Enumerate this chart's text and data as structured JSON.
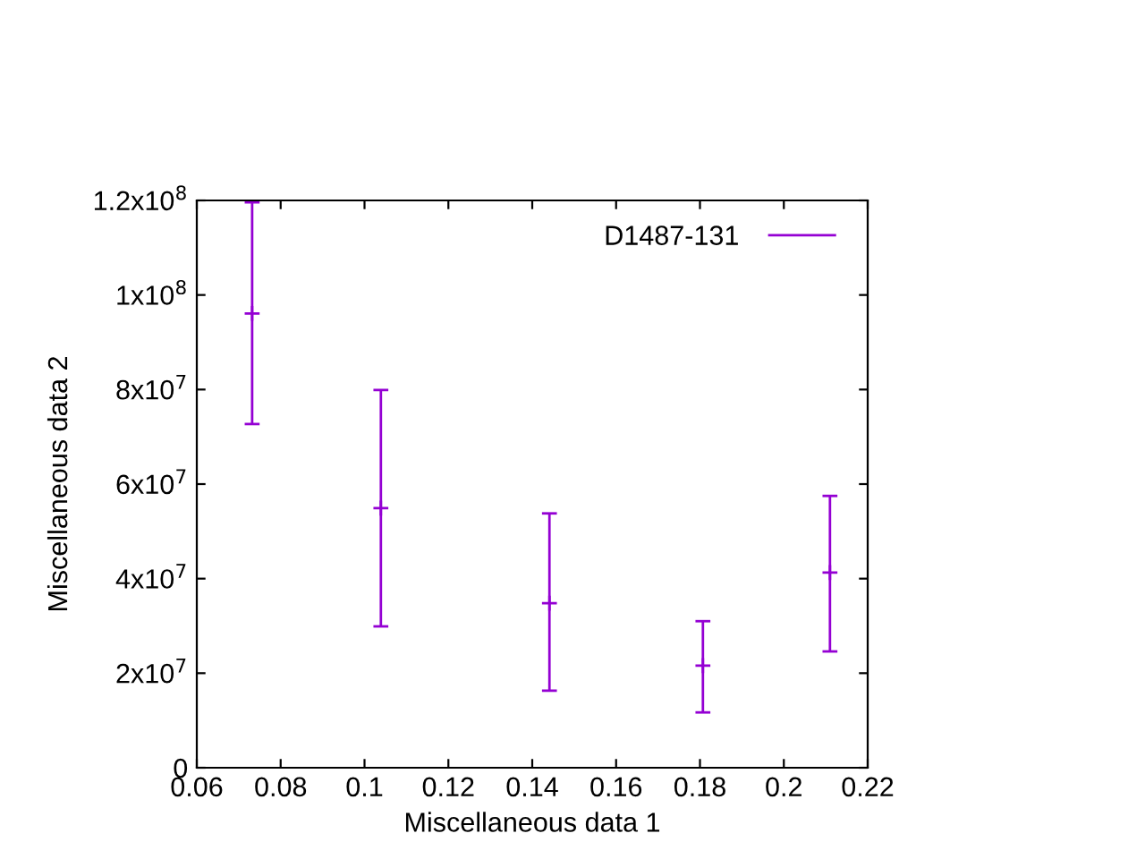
{
  "chart_data": {
    "type": "scatter",
    "xlabel": "Miscellaneous data 1",
    "ylabel": "Miscellaneous data 2",
    "x": [
      0.0732,
      0.1039,
      0.1441,
      0.1807,
      0.211
    ],
    "series": [
      {
        "name": "D1487-131",
        "color": "#9400d3",
        "values": [
          96100000,
          54900000,
          34800000,
          21600000,
          41300000
        ],
        "errors": [
          [
            72700000,
            119600000
          ],
          [
            29900000,
            79900000
          ],
          [
            16300000,
            53800000
          ],
          [
            11700000,
            31000000
          ],
          [
            24600000,
            57500000
          ]
        ]
      }
    ],
    "xlim": [
      0.06,
      0.22
    ],
    "xticks": [
      0.06,
      0.08,
      0.1,
      0.12,
      0.14,
      0.16,
      0.18,
      0.2,
      0.22
    ],
    "ylim": [
      0,
      120000000
    ],
    "yticks": [
      {
        "value": 0,
        "label": "0"
      },
      {
        "value": 20000000,
        "label": "2x10$^{7}$"
      },
      {
        "value": 40000000,
        "label": "4x10$^{7}$"
      },
      {
        "value": 60000000,
        "label": "6x10$^{7}$"
      },
      {
        "value": 80000000,
        "label": "8x10$^{7}$"
      },
      {
        "value": 100000000,
        "label": "1x10$^{8}$"
      },
      {
        "value": 120000000,
        "label": "1.2x10$^{8}$"
      }
    ],
    "legend": "top right",
    "grid": false
  }
}
